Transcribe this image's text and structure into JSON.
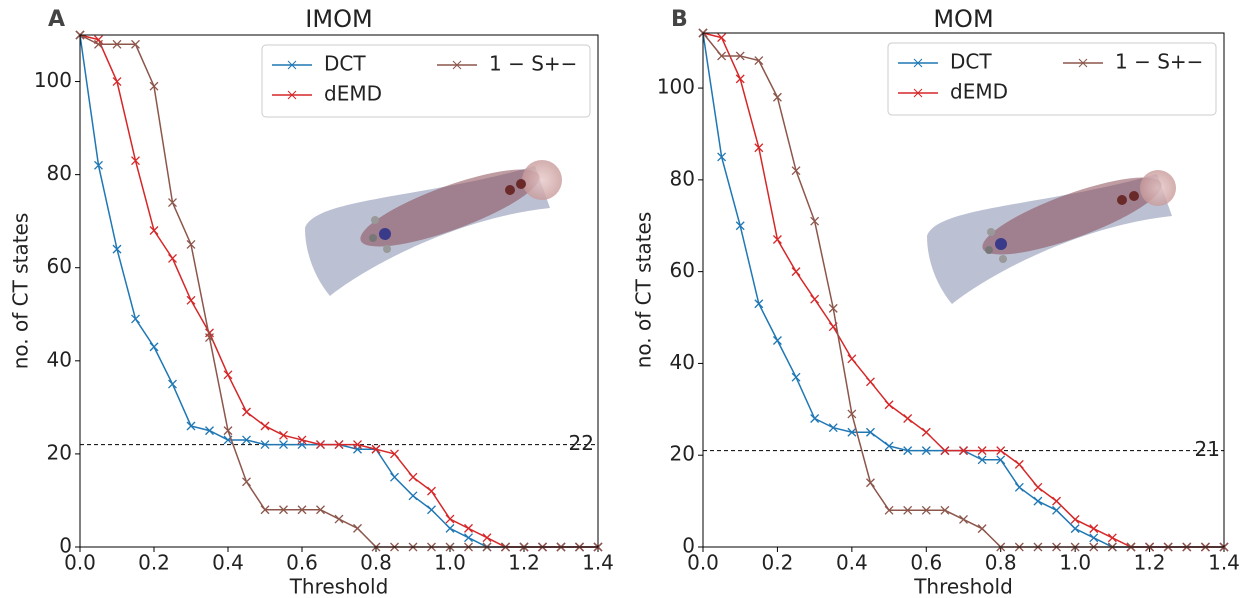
{
  "chart_data": [
    {
      "type": "line",
      "panel": "A",
      "title": "IMOM",
      "xlabel": "Threshold",
      "ylabel": "no. of CT states",
      "x": [
        0,
        0.05,
        0.1,
        0.15,
        0.2,
        0.25,
        0.3,
        0.35,
        0.4,
        0.45,
        0.5,
        0.55,
        0.6,
        0.65,
        0.7,
        0.75,
        0.8,
        0.85,
        0.9,
        0.95,
        1.0,
        1.05,
        1.1,
        1.15,
        1.2,
        1.25,
        1.3,
        1.35,
        1.4
      ],
      "series": [
        {
          "name": "DCT",
          "color": "#1f77b4",
          "values": [
            110,
            82,
            64,
            49,
            43,
            35,
            26,
            25,
            23,
            23,
            22,
            22,
            22,
            22,
            22,
            21,
            21,
            15,
            11,
            8,
            4,
            2,
            0,
            0,
            0,
            0,
            0,
            0,
            0
          ]
        },
        {
          "name": "dEMD",
          "color": "#d62728",
          "values": [
            110,
            109,
            100,
            83,
            68,
            62,
            53,
            46,
            37,
            29,
            26,
            24,
            23,
            22,
            22,
            22,
            21,
            20,
            15,
            12,
            6,
            4,
            2,
            0,
            0,
            0,
            0,
            0,
            0
          ]
        },
        {
          "name": "1 − S+−",
          "color": "#8c564b",
          "values": [
            110,
            108,
            108,
            108,
            99,
            74,
            65,
            45,
            25,
            14,
            8,
            8,
            8,
            8,
            6,
            4,
            0,
            0,
            0,
            0,
            0,
            0,
            0,
            0,
            0,
            0,
            0,
            0,
            0
          ]
        }
      ],
      "hline": 22,
      "xlim": [
        0,
        1.4
      ],
      "ylim": [
        0,
        110
      ],
      "xticks": [
        {
          "value": 0,
          "label": "0.0"
        },
        {
          "value": 0.2,
          "label": "0.2"
        },
        {
          "value": 0.4,
          "label": "0.4"
        },
        {
          "value": 0.6,
          "label": "0.6"
        },
        {
          "value": 0.8,
          "label": "0.8"
        },
        {
          "value": 1.0,
          "label": "1.0"
        },
        {
          "value": 1.2,
          "label": "1.2"
        },
        {
          "value": 1.4,
          "label": "1.4"
        }
      ],
      "yticks": [
        0,
        20,
        40,
        60,
        80,
        100
      ],
      "legend": "upper right"
    },
    {
      "type": "line",
      "panel": "B",
      "title": "MOM",
      "xlabel": "Threshold",
      "ylabel": "no. of CT states",
      "x": [
        0,
        0.05,
        0.1,
        0.15,
        0.2,
        0.25,
        0.3,
        0.35,
        0.4,
        0.45,
        0.5,
        0.55,
        0.6,
        0.65,
        0.7,
        0.75,
        0.8,
        0.85,
        0.9,
        0.95,
        1.0,
        1.05,
        1.1,
        1.15,
        1.2,
        1.25,
        1.3,
        1.35,
        1.4
      ],
      "series": [
        {
          "name": "DCT",
          "color": "#1f77b4",
          "values": [
            112,
            85,
            70,
            53,
            45,
            37,
            28,
            26,
            25,
            25,
            22,
            21,
            21,
            21,
            21,
            19,
            19,
            13,
            10,
            8,
            4,
            2,
            0,
            0,
            0,
            0,
            0,
            0,
            0
          ]
        },
        {
          "name": "dEMD",
          "color": "#d62728",
          "values": [
            112,
            111,
            102,
            87,
            67,
            60,
            54,
            48,
            41,
            36,
            31,
            28,
            25,
            21,
            21,
            21,
            21,
            18,
            13,
            10,
            6,
            4,
            2,
            0,
            0,
            0,
            0,
            0,
            0
          ]
        },
        {
          "name": "1 − S+−",
          "color": "#8c564b",
          "values": [
            112,
            107,
            107,
            106,
            98,
            82,
            71,
            52,
            29,
            14,
            8,
            8,
            8,
            8,
            6,
            4,
            0,
            0,
            0,
            0,
            0,
            0,
            0,
            0,
            0,
            0,
            0,
            0,
            0
          ]
        }
      ],
      "hline": 21,
      "xlim": [
        0,
        1.4
      ],
      "ylim": [
        0,
        112
      ],
      "xticks": [
        {
          "value": 0,
          "label": "0.0"
        },
        {
          "value": 0.2,
          "label": "0.2"
        },
        {
          "value": 0.4,
          "label": "0.4"
        },
        {
          "value": 0.6,
          "label": "0.6"
        },
        {
          "value": 0.8,
          "label": "0.8"
        },
        {
          "value": 1.0,
          "label": "1.0"
        },
        {
          "value": 1.2,
          "label": "1.2"
        },
        {
          "value": 1.4,
          "label": "1.4"
        }
      ],
      "yticks": [
        0,
        20,
        40,
        60,
        80,
        100
      ],
      "legend": "upper right"
    }
  ]
}
